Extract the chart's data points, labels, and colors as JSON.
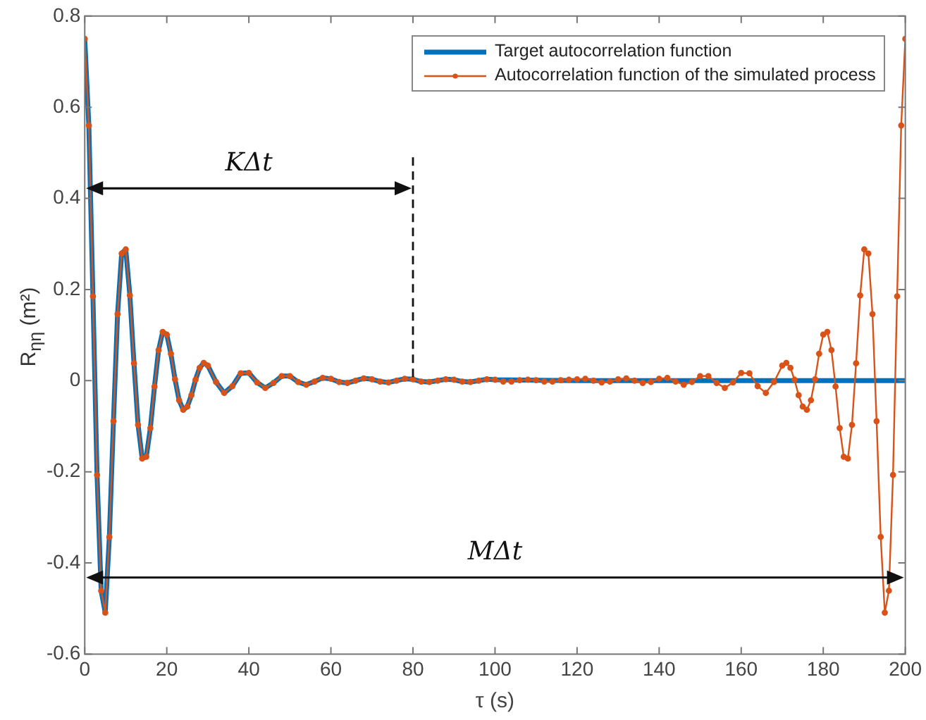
{
  "chart_data": {
    "type": "line",
    "xlabel": "τ (s)",
    "ylabel": "R$_{ηη}$ (m²)",
    "xlim": [
      0,
      200
    ],
    "xticks": [
      0,
      20,
      40,
      60,
      80,
      100,
      120,
      140,
      160,
      180,
      200
    ],
    "ylim": [
      -0.6,
      0.8
    ],
    "yticks": [
      -0.6,
      -0.4,
      -0.2,
      0,
      0.2,
      0.4,
      0.6,
      0.8
    ],
    "grid": false,
    "legend": "top right",
    "series": [
      {
        "name": "Target autocorrelation function",
        "color": "#0072bd",
        "marker": "none",
        "x": [
          0,
          1,
          2,
          3,
          4,
          5,
          6,
          7,
          8,
          9,
          10,
          11,
          12,
          13,
          14,
          15,
          16,
          17,
          18,
          19,
          20,
          21,
          22,
          23,
          24,
          25,
          26,
          27,
          28,
          29,
          30,
          32,
          34,
          36,
          38,
          40,
          42,
          44,
          46,
          48,
          50,
          52,
          54,
          56,
          58,
          60,
          62,
          64,
          66,
          68,
          70,
          72,
          74,
          76,
          78,
          80,
          82,
          84,
          86,
          88,
          90,
          92,
          94,
          96,
          98,
          100,
          120,
          140,
          160,
          180,
          200
        ],
        "values": [
          0.75,
          0.56,
          0.185,
          -0.207,
          -0.461,
          -0.509,
          -0.343,
          -0.089,
          0.146,
          0.279,
          0.288,
          0.187,
          0.038,
          -0.097,
          -0.171,
          -0.167,
          -0.104,
          -0.013,
          0.067,
          0.107,
          0.101,
          0.059,
          0.003,
          -0.043,
          -0.064,
          -0.057,
          -0.032,
          0.002,
          0.028,
          0.039,
          0.033,
          -0.003,
          -0.027,
          -0.012,
          0.016,
          0.017,
          -0.004,
          -0.016,
          -0.005,
          0.01,
          0.01,
          -0.003,
          -0.009,
          -0.002,
          0.006,
          0.004,
          -0.003,
          -0.005,
          0,
          0.005,
          0.003,
          -0.002,
          -0.004,
          0,
          0.004,
          0.003,
          -0.002,
          -0.003,
          0,
          0.003,
          0.002,
          -0.002,
          -0.003,
          0,
          0.003,
          0.002,
          0,
          0,
          0,
          0,
          0
        ]
      },
      {
        "name": "Autocorrelation function of the simulated process",
        "color": "#d95319",
        "marker": "circle",
        "x": [
          0,
          1,
          2,
          3,
          4,
          5,
          6,
          7,
          8,
          9,
          10,
          11,
          12,
          13,
          14,
          15,
          16,
          17,
          18,
          19,
          20,
          21,
          22,
          23,
          24,
          25,
          26,
          27,
          28,
          29,
          30,
          32,
          34,
          36,
          38,
          40,
          42,
          44,
          46,
          48,
          50,
          52,
          54,
          56,
          58,
          60,
          62,
          64,
          66,
          68,
          70,
          72,
          74,
          76,
          78,
          80,
          82,
          84,
          86,
          88,
          90,
          92,
          94,
          96,
          98,
          100,
          102,
          104,
          106,
          108,
          110,
          112,
          114,
          116,
          118,
          120,
          122,
          124,
          126,
          128,
          130,
          132,
          134,
          136,
          138,
          140,
          142,
          144,
          146,
          148,
          150,
          152,
          154,
          156,
          158,
          160,
          162,
          164,
          166,
          168,
          170,
          171,
          172,
          173,
          174,
          175,
          176,
          177,
          178,
          179,
          180,
          181,
          182,
          183,
          184,
          185,
          186,
          187,
          188,
          189,
          190,
          191,
          192,
          193,
          194,
          195,
          196,
          197,
          198,
          199,
          200
        ],
        "values": [
          0.75,
          0.56,
          0.185,
          -0.207,
          -0.461,
          -0.509,
          -0.343,
          -0.089,
          0.146,
          0.279,
          0.288,
          0.187,
          0.038,
          -0.097,
          -0.171,
          -0.167,
          -0.104,
          -0.013,
          0.067,
          0.107,
          0.101,
          0.059,
          0.003,
          -0.043,
          -0.064,
          -0.057,
          -0.032,
          0.002,
          0.028,
          0.039,
          0.033,
          -0.003,
          -0.027,
          -0.012,
          0.016,
          0.017,
          -0.004,
          -0.016,
          -0.005,
          0.01,
          0.01,
          -0.003,
          -0.009,
          -0.002,
          0.006,
          0.004,
          -0.003,
          -0.005,
          0,
          0.005,
          0.003,
          -0.002,
          -0.004,
          0,
          0.004,
          0.003,
          -0.002,
          -0.003,
          0,
          0.003,
          0.002,
          -0.002,
          -0.003,
          0,
          0.003,
          0.002,
          -0.002,
          -0.002,
          0.001,
          0.002,
          0.001,
          -0.002,
          -0.002,
          0.001,
          0.002,
          0.003,
          0.004,
          0,
          -0.004,
          -0.002,
          0.003,
          0.005,
          0,
          -0.005,
          -0.003,
          0.004,
          0.006,
          -0.002,
          -0.009,
          -0.003,
          0.01,
          0.01,
          -0.005,
          -0.016,
          -0.004,
          0.017,
          0.016,
          -0.012,
          -0.027,
          -0.003,
          0.033,
          0.039,
          0.028,
          0.002,
          -0.032,
          -0.057,
          -0.064,
          -0.043,
          0.003,
          0.059,
          0.101,
          0.107,
          0.067,
          -0.013,
          -0.104,
          -0.167,
          -0.171,
          -0.097,
          0.038,
          0.187,
          0.288,
          0.279,
          0.146,
          -0.089,
          -0.343,
          -0.509,
          -0.461,
          -0.207,
          0.185,
          0.56,
          0.75
        ]
      }
    ],
    "ref_lines": [
      {
        "axis": "x",
        "value": 80,
        "line_style": "dashed",
        "color": "#111111"
      }
    ],
    "annotations": [
      "KΔt",
      "MΔt"
    ]
  }
}
